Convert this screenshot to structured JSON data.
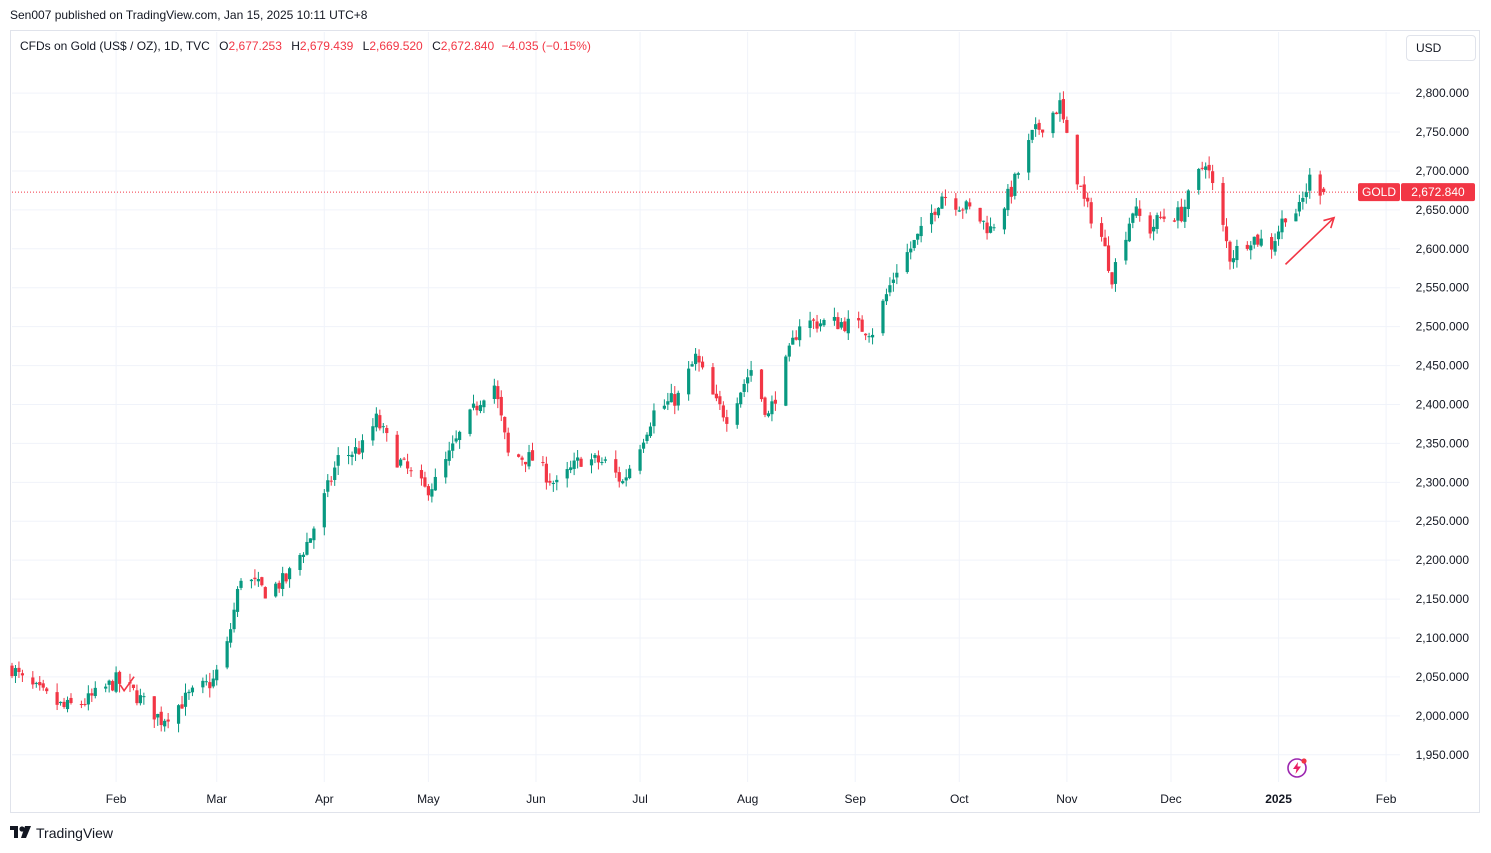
{
  "publisher_line": "Sen007 published on TradingView.com, Jan 15, 2025 10:11 UTC+8",
  "legend": {
    "symbol": "CFDs on Gold (US$ / OZ), 1D, TVC",
    "o_label": "O",
    "o_value": "2,677.253",
    "h_label": "H",
    "h_value": "2,679.439",
    "l_label": "L",
    "l_value": "2,669.520",
    "c_label": "C",
    "c_value": "2,672.840",
    "change": "−4.035 (−0.15%)"
  },
  "currency_button": "USD",
  "price_badge": {
    "ticker": "GOLD",
    "price": "2,672.840"
  },
  "footer_brand": "TradingView",
  "colors": {
    "up": "#089981",
    "down": "#f23645",
    "grid": "#f0f3fa",
    "text": "#131722",
    "arrow": "#f23645"
  },
  "icons": [
    "tradingview-logo-icon",
    "flash-icon"
  ],
  "chart_data": {
    "type": "candlestick",
    "yaxis_ticks": [
      1950,
      2000,
      2050,
      2100,
      2150,
      2200,
      2250,
      2300,
      2350,
      2400,
      2450,
      2500,
      2550,
      2600,
      2650,
      2700,
      2750,
      2800
    ],
    "yaxis_tick_labels": [
      "1,950.000",
      "2,000.000",
      "2,050.000",
      "2,100.000",
      "2,150.000",
      "2,200.000",
      "2,250.000",
      "2,300.000",
      "2,350.000",
      "2,400.000",
      "2,450.000",
      "2,500.000",
      "2,550.000",
      "2,600.000",
      "2,650.000",
      "2,700.000",
      "2,750.000",
      "2,800.000"
    ],
    "ylim": [
      1915,
      2840
    ],
    "xaxis_labels": [
      {
        "label": "Feb",
        "date": "2024-02-01"
      },
      {
        "label": "Mar",
        "date": "2024-03-01"
      },
      {
        "label": "Apr",
        "date": "2024-04-01"
      },
      {
        "label": "May",
        "date": "2024-05-01"
      },
      {
        "label": "Jun",
        "date": "2024-06-01"
      },
      {
        "label": "Jul",
        "date": "2024-07-01"
      },
      {
        "label": "Aug",
        "date": "2024-08-01"
      },
      {
        "label": "Sep",
        "date": "2024-09-01"
      },
      {
        "label": "Oct",
        "date": "2024-10-01"
      },
      {
        "label": "Nov",
        "date": "2024-11-01"
      },
      {
        "label": "Dec",
        "date": "2024-12-01"
      },
      {
        "label": "2025",
        "date": "2025-01-01",
        "bold": true
      },
      {
        "label": "Feb",
        "date": "2025-02-01"
      }
    ],
    "xlim_dates": [
      "2024-01-02",
      "2025-02-05"
    ],
    "last_price": 2672.84,
    "close_path": [
      [
        "2024-01-02",
        2062
      ],
      [
        "2024-01-05",
        2045
      ],
      [
        "2024-01-10",
        2030
      ],
      [
        "2024-01-17",
        2010
      ],
      [
        "2024-01-24",
        2020
      ],
      [
        "2024-02-01",
        2045
      ],
      [
        "2024-02-06",
        2030
      ],
      [
        "2024-02-14",
        1995
      ],
      [
        "2024-02-22",
        2025
      ],
      [
        "2024-02-29",
        2045
      ],
      [
        "2024-03-04",
        2090
      ],
      [
        "2024-03-08",
        2180
      ],
      [
        "2024-03-15",
        2160
      ],
      [
        "2024-03-21",
        2175
      ],
      [
        "2024-03-28",
        2230
      ],
      [
        "2024-04-05",
        2330
      ],
      [
        "2024-04-12",
        2345
      ],
      [
        "2024-04-16",
        2380
      ],
      [
        "2024-04-22",
        2330
      ],
      [
        "2024-04-30",
        2290
      ],
      [
        "2024-05-03",
        2300
      ],
      [
        "2024-05-10",
        2360
      ],
      [
        "2024-05-17",
        2415
      ],
      [
        "2024-05-20",
        2425
      ],
      [
        "2024-05-24",
        2335
      ],
      [
        "2024-05-31",
        2330
      ],
      [
        "2024-06-07",
        2295
      ],
      [
        "2024-06-14",
        2330
      ],
      [
        "2024-06-21",
        2325
      ],
      [
        "2024-06-26",
        2300
      ],
      [
        "2024-07-05",
        2390
      ],
      [
        "2024-07-12",
        2410
      ],
      [
        "2024-07-17",
        2460
      ],
      [
        "2024-07-23",
        2400
      ],
      [
        "2024-07-26",
        2385
      ],
      [
        "2024-08-02",
        2445
      ],
      [
        "2024-08-07",
        2385
      ],
      [
        "2024-08-16",
        2505
      ],
      [
        "2024-08-20",
        2505
      ],
      [
        "2024-08-28",
        2505
      ],
      [
        "2024-09-06",
        2495
      ],
      [
        "2024-09-13",
        2575
      ],
      [
        "2024-09-20",
        2620
      ],
      [
        "2024-09-26",
        2670
      ],
      [
        "2024-10-04",
        2650
      ],
      [
        "2024-10-10",
        2625
      ],
      [
        "2024-10-16",
        2675
      ],
      [
        "2024-10-22",
        2745
      ],
      [
        "2024-10-30",
        2785
      ],
      [
        "2024-11-01",
        2740
      ],
      [
        "2024-11-06",
        2660
      ],
      [
        "2024-11-11",
        2615
      ],
      [
        "2024-11-14",
        2565
      ],
      [
        "2024-11-20",
        2650
      ],
      [
        "2024-11-25",
        2625
      ],
      [
        "2024-11-28",
        2640
      ],
      [
        "2024-12-04",
        2645
      ],
      [
        "2024-12-11",
        2715
      ],
      [
        "2024-12-18",
        2590
      ],
      [
        "2024-12-24",
        2615
      ],
      [
        "2024-12-30",
        2605
      ],
      [
        "2025-01-03",
        2645
      ],
      [
        "2025-01-07",
        2650
      ],
      [
        "2025-01-10",
        2690
      ],
      [
        "2025-01-14",
        2672.84
      ]
    ],
    "annotations": [
      {
        "type": "arrow",
        "from": [
          "2025-01-03",
          2580
        ],
        "to": [
          "2025-01-17",
          2640
        ]
      },
      {
        "type": "check-mark",
        "at": [
          "2024-02-01",
          2040
        ]
      }
    ]
  }
}
